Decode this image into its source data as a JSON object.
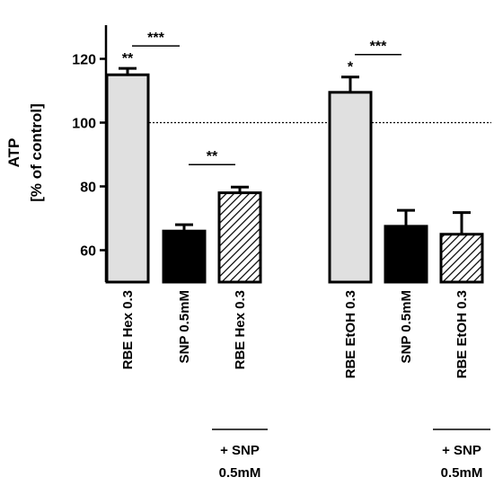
{
  "chart_data": {
    "type": "bar",
    "ylabel_line1": "ATP",
    "ylabel_line2": "[% of control]",
    "ylim": [
      50,
      120
    ],
    "yticks": [
      "60",
      "80",
      "100",
      "120"
    ],
    "reference_line": 100,
    "categories": [
      "RBE Hex 0.3",
      "SNP 0.5mM",
      "RBE Hex 0.3",
      "RBE EtOH 0.3",
      "SNP 0.5mM",
      "RBE EtOH 0.3"
    ],
    "values": [
      115,
      66,
      78,
      109.5,
      67.5,
      65
    ],
    "errors": [
      2,
      2,
      1.8,
      4.8,
      5,
      6.8
    ],
    "fills": [
      "light",
      "dark",
      "hatched",
      "light",
      "dark",
      "hatched"
    ],
    "bar_annotations": [
      "**",
      "",
      "",
      "*",
      "",
      ""
    ],
    "comparisons": [
      {
        "from": 0,
        "to": 1,
        "label": "***"
      },
      {
        "from": 1,
        "to": 2,
        "label": "**"
      },
      {
        "from": 3,
        "to": 4,
        "label": "***"
      }
    ],
    "group_label_line1": "+ SNP",
    "group_label_line2": "0.5mM"
  },
  "colors": {
    "light": "#e0e0e0",
    "dark": "#000000",
    "stroke": "#000000"
  }
}
